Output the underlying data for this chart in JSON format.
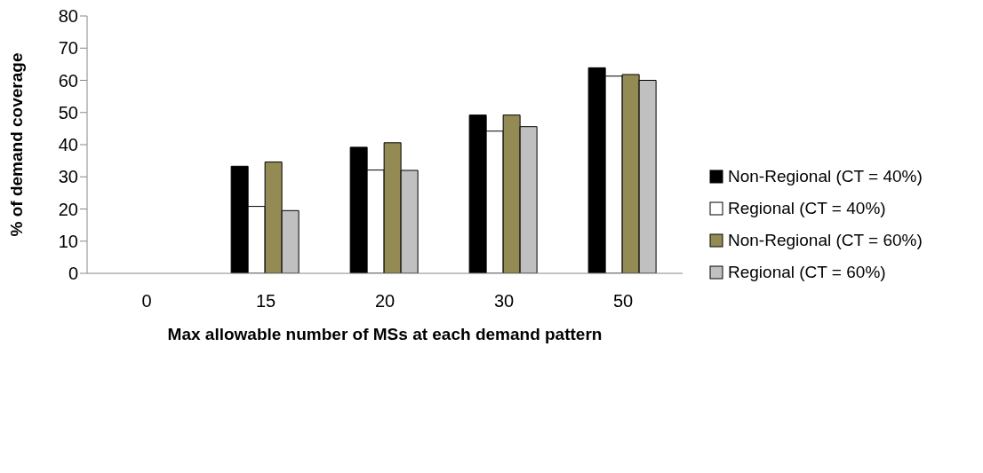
{
  "chart_data": {
    "type": "bar",
    "xlabel": "Max allowable number of MSs at each demand pattern",
    "ylabel": "% of demand coverage",
    "categories": [
      "0",
      "15",
      "20",
      "30",
      "50"
    ],
    "series": [
      {
        "name": "Non-Regional (CT = 40%)",
        "color": "#000000",
        "values": [
          0,
          33.3,
          39.2,
          49.2,
          63.9
        ]
      },
      {
        "name": "Regional (CT = 40%)",
        "color": "#ffffff",
        "values": [
          0,
          20.8,
          32.1,
          44.2,
          61.3
        ]
      },
      {
        "name": "Non-Regional (CT = 60%)",
        "color": "#948a54",
        "values": [
          0,
          34.6,
          40.6,
          49.2,
          61.8
        ]
      },
      {
        "name": "Regional (CT = 60%)",
        "color": "#c0c0c0",
        "values": [
          0,
          19.5,
          32.0,
          45.6,
          60.0
        ]
      }
    ],
    "ylim": [
      0,
      80
    ],
    "yticks": [
      0,
      10,
      20,
      30,
      40,
      50,
      60,
      70,
      80
    ],
    "grid": false,
    "legend": "right"
  }
}
